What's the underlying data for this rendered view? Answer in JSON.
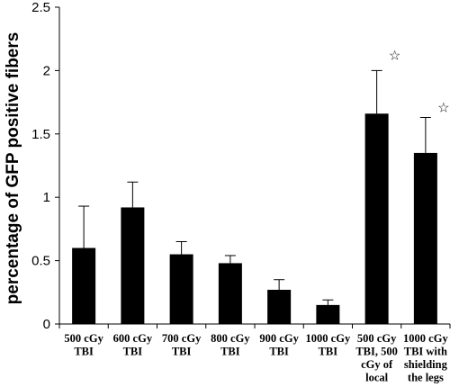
{
  "chart_data": {
    "type": "bar",
    "title": "",
    "xlabel": "",
    "ylabel": "percentage of GFP positive fibers",
    "ylim": [
      0,
      2.5
    ],
    "yticks": [
      0,
      0.5,
      1,
      1.5,
      2,
      2.5
    ],
    "ytick_labels": [
      "0",
      "0.5",
      "1",
      "1.5",
      "2",
      "2.5"
    ],
    "grid": false,
    "legend": "none",
    "bar_color": "#000000",
    "categories": [
      [
        "500 cGy",
        "TBI"
      ],
      [
        "600 cGy",
        "TBI"
      ],
      [
        "700 cGy",
        "TBI"
      ],
      [
        "800 cGy",
        "TBI"
      ],
      [
        "900 cGy",
        "TBI"
      ],
      [
        "1000 cGy",
        "TBI"
      ],
      [
        "500 cGy",
        "TBI, 500",
        "cGy of",
        "local"
      ],
      [
        "1000  cGy",
        "TBI with",
        "shielding",
        "the legs"
      ]
    ],
    "values": [
      0.6,
      0.92,
      0.55,
      0.48,
      0.27,
      0.15,
      1.66,
      1.35
    ],
    "error_upper": [
      0.93,
      1.12,
      0.65,
      0.54,
      0.35,
      0.19,
      2.0,
      1.63
    ],
    "markers": [
      "",
      "",
      "",
      "",
      "",
      "",
      "☆",
      "☆"
    ]
  }
}
